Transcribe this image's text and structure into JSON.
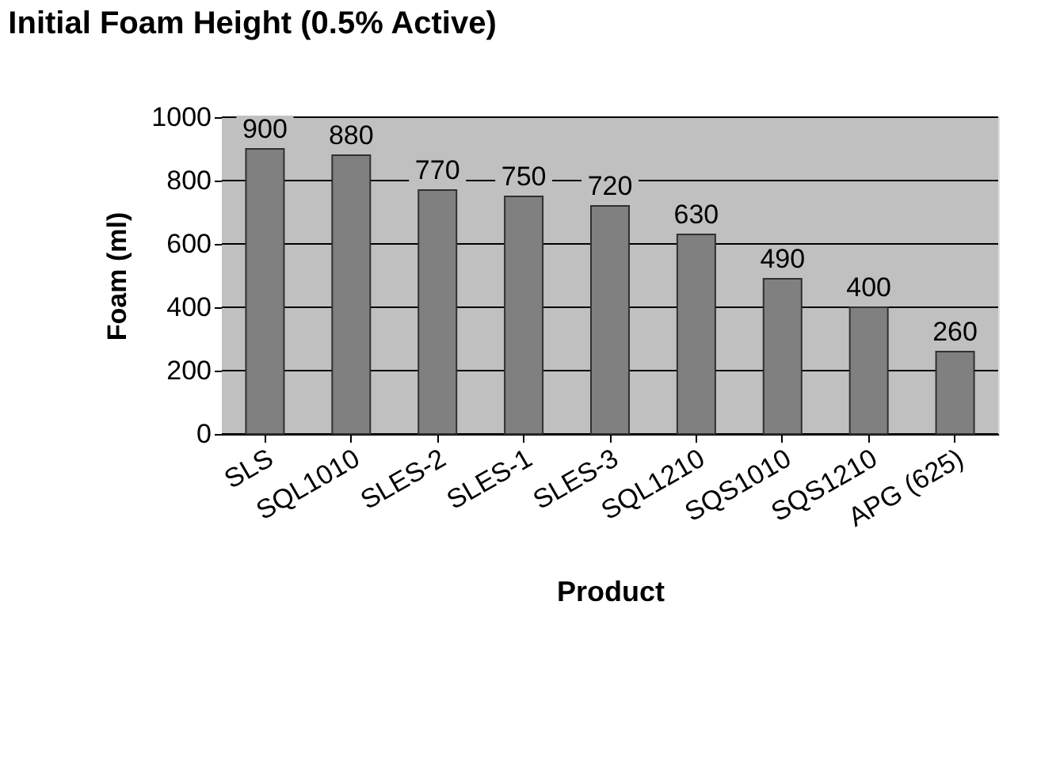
{
  "chart_data": {
    "type": "bar",
    "title": "Initial Foam Height (0.5% Active)",
    "xlabel": "Product",
    "ylabel": "Foam (ml)",
    "categories": [
      "SLS",
      "SQL1010",
      "SLES-2",
      "SLES-1",
      "SLES-3",
      "SQL1210",
      "SQS1010",
      "SQS1210",
      "APG (625)"
    ],
    "values": [
      900,
      880,
      770,
      750,
      720,
      630,
      490,
      400,
      260
    ],
    "color": "#808080",
    "ylim": [
      0,
      1000
    ],
    "yticks": [
      0,
      200,
      400,
      600,
      800,
      1000
    ],
    "grid": "y",
    "data_labels": true
  }
}
